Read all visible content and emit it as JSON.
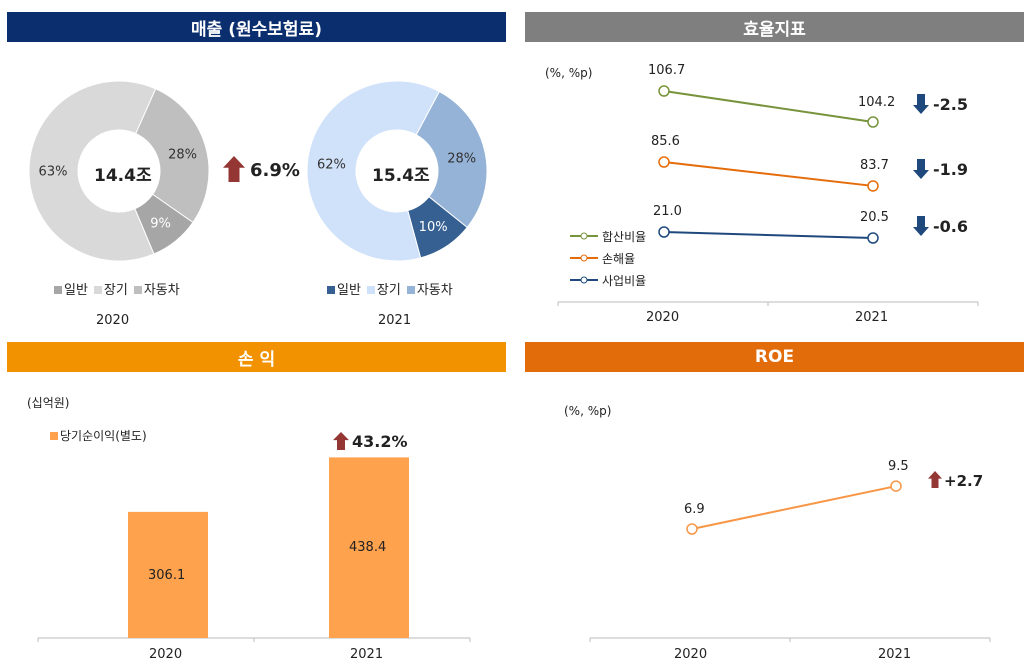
{
  "headers": {
    "sales": "매출 (원수보험료)",
    "efficiency": "효율지표",
    "profit": "손 익",
    "roe": "ROE"
  },
  "colors": {
    "sales_header": "#0b2f6e",
    "efficiency_header": "#7f7f7f",
    "profit_header": "#f39200",
    "roe_header": "#e36c0a",
    "up_arrow": "#943634",
    "down_arrow": "#1f497d"
  },
  "chart_data": [
    {
      "type": "pie",
      "variant": "donut",
      "year": "2020",
      "center_label": "14.4조",
      "slices": [
        {
          "name": "자동차",
          "value": 28,
          "label": "28%",
          "color": "#bfbfbf"
        },
        {
          "name": "일반",
          "value": 9,
          "label": "9%",
          "color": "#a6a6a6"
        },
        {
          "name": "장기",
          "value": 63,
          "label": "63%",
          "color": "#d9d9d9"
        }
      ],
      "legend": [
        "일반",
        "장기",
        "자동차"
      ]
    },
    {
      "type": "pie",
      "variant": "donut",
      "year": "2021",
      "center_label": "15.4조",
      "slices": [
        {
          "name": "자동차",
          "value": 28,
          "label": "28%",
          "color": "#95b3d7"
        },
        {
          "name": "일반",
          "value": 10,
          "label": "10%",
          "color": "#366092"
        },
        {
          "name": "장기",
          "value": 62,
          "label": "62%",
          "color": "#d0e2fa"
        }
      ],
      "legend": [
        "일반",
        "장기",
        "자동차"
      ],
      "growth": {
        "icon": "up-arrow-icon",
        "label": "6.9%"
      }
    },
    {
      "type": "line",
      "unit": "(%, %p)",
      "categories": [
        "2020",
        "2021"
      ],
      "series": [
        {
          "name": "합산비율",
          "values": [
            106.7,
            104.2
          ],
          "color": "#77933c",
          "change": "-2.5"
        },
        {
          "name": "손해율",
          "values": [
            85.6,
            83.7
          ],
          "color": "#e46c0a",
          "change": "-1.9"
        },
        {
          "name": "사업비율",
          "values": [
            21.0,
            20.5
          ],
          "color": "#1f497d",
          "change": "-0.6"
        }
      ],
      "value_labels": [
        [
          "106.7",
          "104.2"
        ],
        [
          "85.6",
          "83.7"
        ],
        [
          "21.0",
          "20.5"
        ]
      ]
    },
    {
      "type": "bar",
      "unit": "(십억원)",
      "categories": [
        "2020",
        "2021"
      ],
      "series": [
        {
          "name": "당기순이익(별도)",
          "values": [
            306.1,
            438.4
          ],
          "labels": [
            "306.1",
            "438.4"
          ],
          "color": "#ffa24d"
        }
      ],
      "growth": {
        "icon": "up-arrow-icon",
        "label": "43.2%"
      }
    },
    {
      "type": "line",
      "unit": "(%, %p)",
      "categories": [
        "2020",
        "2021"
      ],
      "series": [
        {
          "values": [
            6.9,
            9.5
          ],
          "labels": [
            "6.9",
            "9.5"
          ],
          "color": "#f79646"
        }
      ],
      "change": {
        "icon": "up-arrow-icon",
        "label": "+2.7"
      }
    }
  ]
}
